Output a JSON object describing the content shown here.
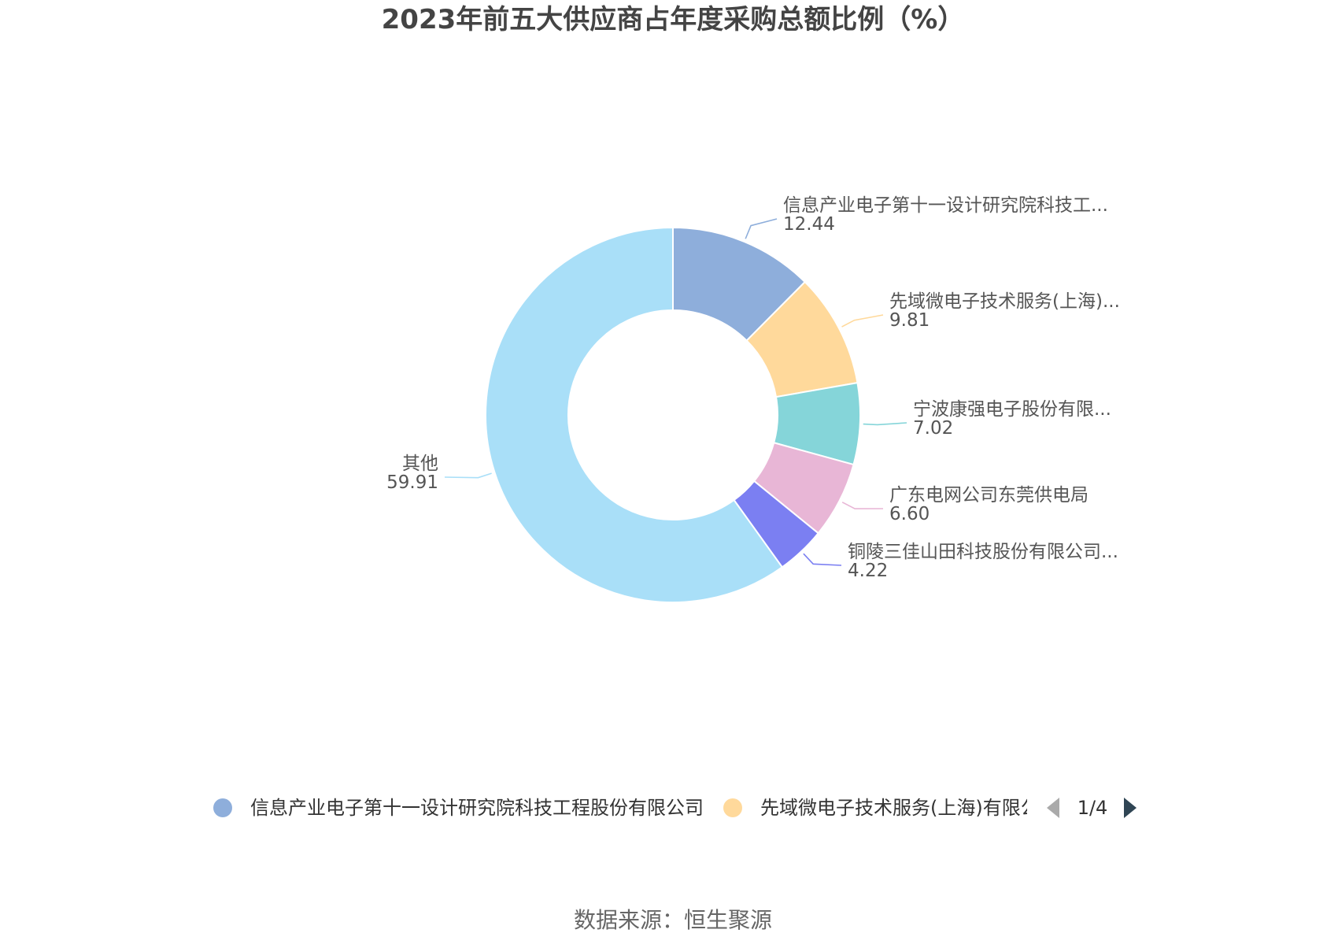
{
  "chart_data": {
    "type": "pie",
    "title": "2023年前五大供应商占年度采购总额比例（%）",
    "slices": [
      {
        "label": "信息产业电子第十一设计研究院科技工...",
        "legend_label": "信息产业电子第十一设计研究院科技工程股份有限公司",
        "value": 12.44,
        "value_text": "12.44",
        "color": "#8eaedb"
      },
      {
        "label": "先域微电子技术服务(上海)...",
        "legend_label": "先域微电子技术服务(上海)有限公",
        "value": 9.81,
        "value_text": "9.81",
        "color": "#ffd99b"
      },
      {
        "label": "宁波康强电子股份有限...",
        "value": 7.02,
        "value_text": "7.02",
        "color": "#85d5d9"
      },
      {
        "label": "广东电网公司东莞供电局",
        "value": 6.6,
        "value_text": "6.60",
        "color": "#e8b6d6"
      },
      {
        "label": "铜陵三佳山田科技股份有限公司...",
        "value": 4.22,
        "value_text": "4.22",
        "color": "#7b7ff2"
      },
      {
        "label": "其他",
        "value": 59.91,
        "value_text": "59.91",
        "color": "#a9dff8"
      }
    ]
  },
  "legend": {
    "page_text": "1/4",
    "prev_icon": "triangle-left-icon",
    "next_icon": "triangle-right-icon"
  },
  "source_text": "数据来源：恒生聚源"
}
